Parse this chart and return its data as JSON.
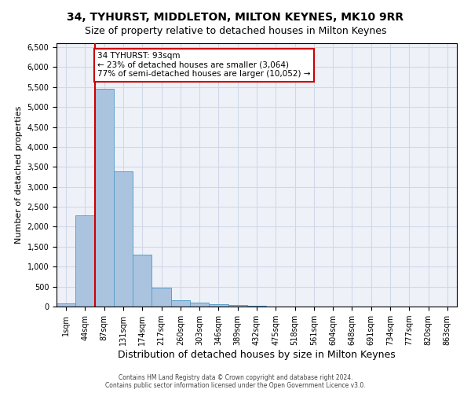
{
  "title": "34, TYHURST, MIDDLETON, MILTON KEYNES, MK10 9RR",
  "subtitle": "Size of property relative to detached houses in Milton Keynes",
  "xlabel": "Distribution of detached houses by size in Milton Keynes",
  "ylabel": "Number of detached properties",
  "footer_line1": "Contains HM Land Registry data © Crown copyright and database right 2024.",
  "footer_line2": "Contains public sector information licensed under the Open Government Licence v3.0.",
  "bin_labels": [
    "1sqm",
    "44sqm",
    "87sqm",
    "131sqm",
    "174sqm",
    "217sqm",
    "260sqm",
    "303sqm",
    "346sqm",
    "389sqm",
    "432sqm",
    "475sqm",
    "518sqm",
    "561sqm",
    "604sqm",
    "648sqm",
    "691sqm",
    "734sqm",
    "777sqm",
    "820sqm",
    "863sqm"
  ],
  "bar_values": [
    75,
    2280,
    5450,
    3380,
    1310,
    480,
    165,
    105,
    65,
    40,
    10,
    0,
    0,
    0,
    0,
    0,
    0,
    0,
    0,
    0,
    0
  ],
  "bar_color": "#aac4e0",
  "bar_edgecolor": "#5a9fc9",
  "annotation_text": "34 TYHURST: 93sqm\n← 23% of detached houses are smaller (3,064)\n77% of semi-detached houses are larger (10,052) →",
  "annotation_box_color": "#ffffff",
  "annotation_box_edgecolor": "#cc0000",
  "vline_x": 2,
  "vline_color": "#cc0000",
  "ylim": [
    0,
    6600
  ],
  "yticks": [
    0,
    500,
    1000,
    1500,
    2000,
    2500,
    3000,
    3500,
    4000,
    4500,
    5000,
    5500,
    6000,
    6500
  ],
  "grid_color": "#d0d8e8",
  "bg_color": "#eef2f8",
  "title_fontsize": 10,
  "subtitle_fontsize": 9,
  "ylabel_fontsize": 8,
  "xlabel_fontsize": 9,
  "tick_fontsize": 7,
  "footer_fontsize": 5.5,
  "annotation_fontsize": 7.5
}
